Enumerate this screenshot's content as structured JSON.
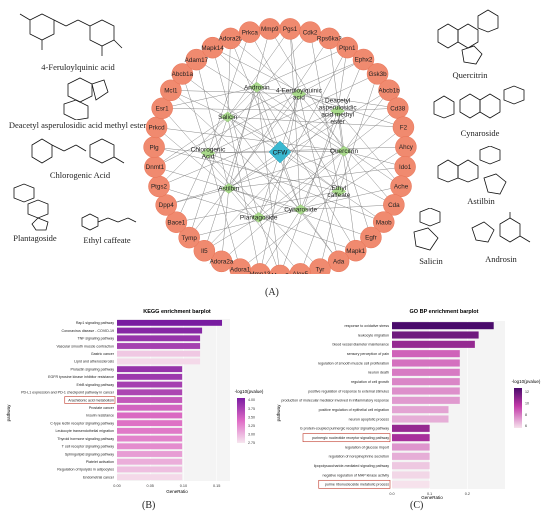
{
  "molecules": {
    "left": [
      "4-Feruloylquinic acid",
      "Deacetyl asperulosidic acid methyl ester",
      "Chlorogenic Acid",
      "Plantagoside",
      "Ethyl caffeate"
    ],
    "right": [
      "Quercitrin",
      "Cynaroside",
      "Astilbin",
      "Salicin",
      "Androsin"
    ]
  },
  "network": {
    "center": "CFW",
    "compounds": [
      "4-Feruloylquinic acid",
      "Deacetyl asperulosidic acid methyl ester",
      "Quercitrin",
      "Ethyl caffeate",
      "Cynaroside",
      "Plantagoside",
      "Astilbin",
      "Chlorogenic Acid",
      "Salicin",
      "Androsin"
    ],
    "targets": [
      "Pgs1",
      "Cdk2",
      "Rps6ka3",
      "Ptpn1",
      "Ephx2",
      "Gsk3b",
      "Abcb1b",
      "Cd38",
      "F2",
      "Ahcy",
      "Ido1",
      "Ache",
      "Cda",
      "Maob",
      "Egfr",
      "Mapk1",
      "Ada",
      "Tyr",
      "Alox5",
      "Mmp2",
      "Mmp13",
      "Adora1",
      "Adora2a",
      "Il5",
      "Tymp",
      "Bace1",
      "Dpp4",
      "Ptgs2",
      "Dnmt1",
      "Plg",
      "Prkcd",
      "Esr1",
      "Mcl1",
      "Abcb1a",
      "Adam17",
      "Mapk14",
      "Adora2b",
      "Prkca",
      "Mmp9"
    ]
  },
  "panel_labels": {
    "a": "(A)",
    "b": "(B)",
    "c": "(C)"
  },
  "kegg": {
    "title": "KEGG enrichment barplot",
    "xlabel": "GeneRatio",
    "ylabel": "pathway",
    "legend_title": "-log10(pvalue)",
    "legend_ticks": [
      "4.00",
      "3.75",
      "3.50",
      "3.25",
      "3.00",
      "2.75"
    ],
    "xticks": [
      "0.00",
      "0.05",
      "0.10",
      "0.15"
    ],
    "highlighted": "Arachidonic acid metabolism"
  },
  "go": {
    "title": "GO BP enrichment barplot",
    "xlabel": "GeneRatio",
    "ylabel": "pathway",
    "legend_title": "-log10(pvalue)",
    "legend_ticks": [
      "12",
      "10",
      "8",
      "6"
    ],
    "xticks": [
      "0.0",
      "0.1",
      "0.2"
    ],
    "highlighted": [
      "purinergic nucleotide receptor signaling pathway",
      "purine ribonucleoside metabolic process"
    ]
  },
  "chart_data": [
    {
      "type": "bar",
      "title": "KEGG enrichment barplot",
      "xlabel": "GeneRatio",
      "ylabel": "pathway",
      "xlim": [
        0,
        0.17
      ],
      "categories": [
        "Rap1 signaling pathway",
        "Coronavirus disease - COVID-19",
        "TNF signaling pathway",
        "Vascular smooth muscle contraction",
        "Gastric cancer",
        "Lipid and atherosclerosis",
        "Prolactin signaling pathway",
        "EGFR tyrosine kinase inhibitor resistance",
        "ErbB signaling pathway",
        "PD-L1 expression and PD-1 checkpoint pathway in cancer",
        "Arachidonic acid metabolism",
        "Prostate cancer",
        "Insulin resistance",
        "C-type lectin receptor signaling pathway",
        "Leukocyte transendothelial migration",
        "Thyroid hormone signaling pathway",
        "T cell receptor signaling pathway",
        "Sphingolipid signaling pathway",
        "Platelet activation",
        "Regulation of lipolysis in adipocytes",
        "Endometrial cancer"
      ],
      "values": [
        0.158,
        0.128,
        0.125,
        0.125,
        0.125,
        0.125,
        0.098,
        0.098,
        0.098,
        0.098,
        0.098,
        0.098,
        0.098,
        0.098,
        0.098,
        0.098,
        0.098,
        0.098,
        0.098,
        0.098,
        0.098
      ],
      "color_values": [
        4.1,
        4.0,
        3.9,
        3.8,
        2.9,
        2.8,
        3.9,
        3.85,
        3.8,
        3.75,
        3.6,
        3.5,
        3.45,
        3.4,
        3.35,
        3.3,
        3.25,
        3.15,
        3.05,
        2.95,
        2.8
      ]
    },
    {
      "type": "bar",
      "title": "GO BP enrichment barplot",
      "xlabel": "GeneRatio",
      "ylabel": "pathway",
      "xlim": [
        0,
        0.3
      ],
      "categories": [
        "response to oxidative stress",
        "leukocyte migration",
        "blood vessel diameter maintenance",
        "sensory perception of pain",
        "regulation of smooth muscle cell proliferation",
        "neuron death",
        "regulation of cell growth",
        "positive regulation of response to external stimulus",
        "production of molecular mediator involved in inflammatory response",
        "positive regulation of epithelial cell migration",
        "neuron apoptotic process",
        "G protein-coupled purinergic receptor signaling pathway",
        "purinergic nucleotide receptor signaling pathway",
        "regulation of glucose import",
        "regulation of norepinephrine secretion",
        "lipopolysaccharide-mediated signaling pathway",
        "negative regulation of MAP kinase activity",
        "purine ribonucleoside metabolic process"
      ],
      "values": [
        0.27,
        0.23,
        0.22,
        0.18,
        0.18,
        0.18,
        0.18,
        0.18,
        0.18,
        0.15,
        0.15,
        0.1,
        0.1,
        0.1,
        0.1,
        0.1,
        0.1,
        0.1
      ],
      "color_values": [
        12.5,
        11.5,
        10.5,
        8.5,
        8.2,
        8.0,
        7.8,
        7.6,
        7.4,
        7.2,
        7.0,
        10.5,
        10.0,
        7.5,
        7.0,
        6.5,
        6.2,
        6.0
      ]
    }
  ]
}
